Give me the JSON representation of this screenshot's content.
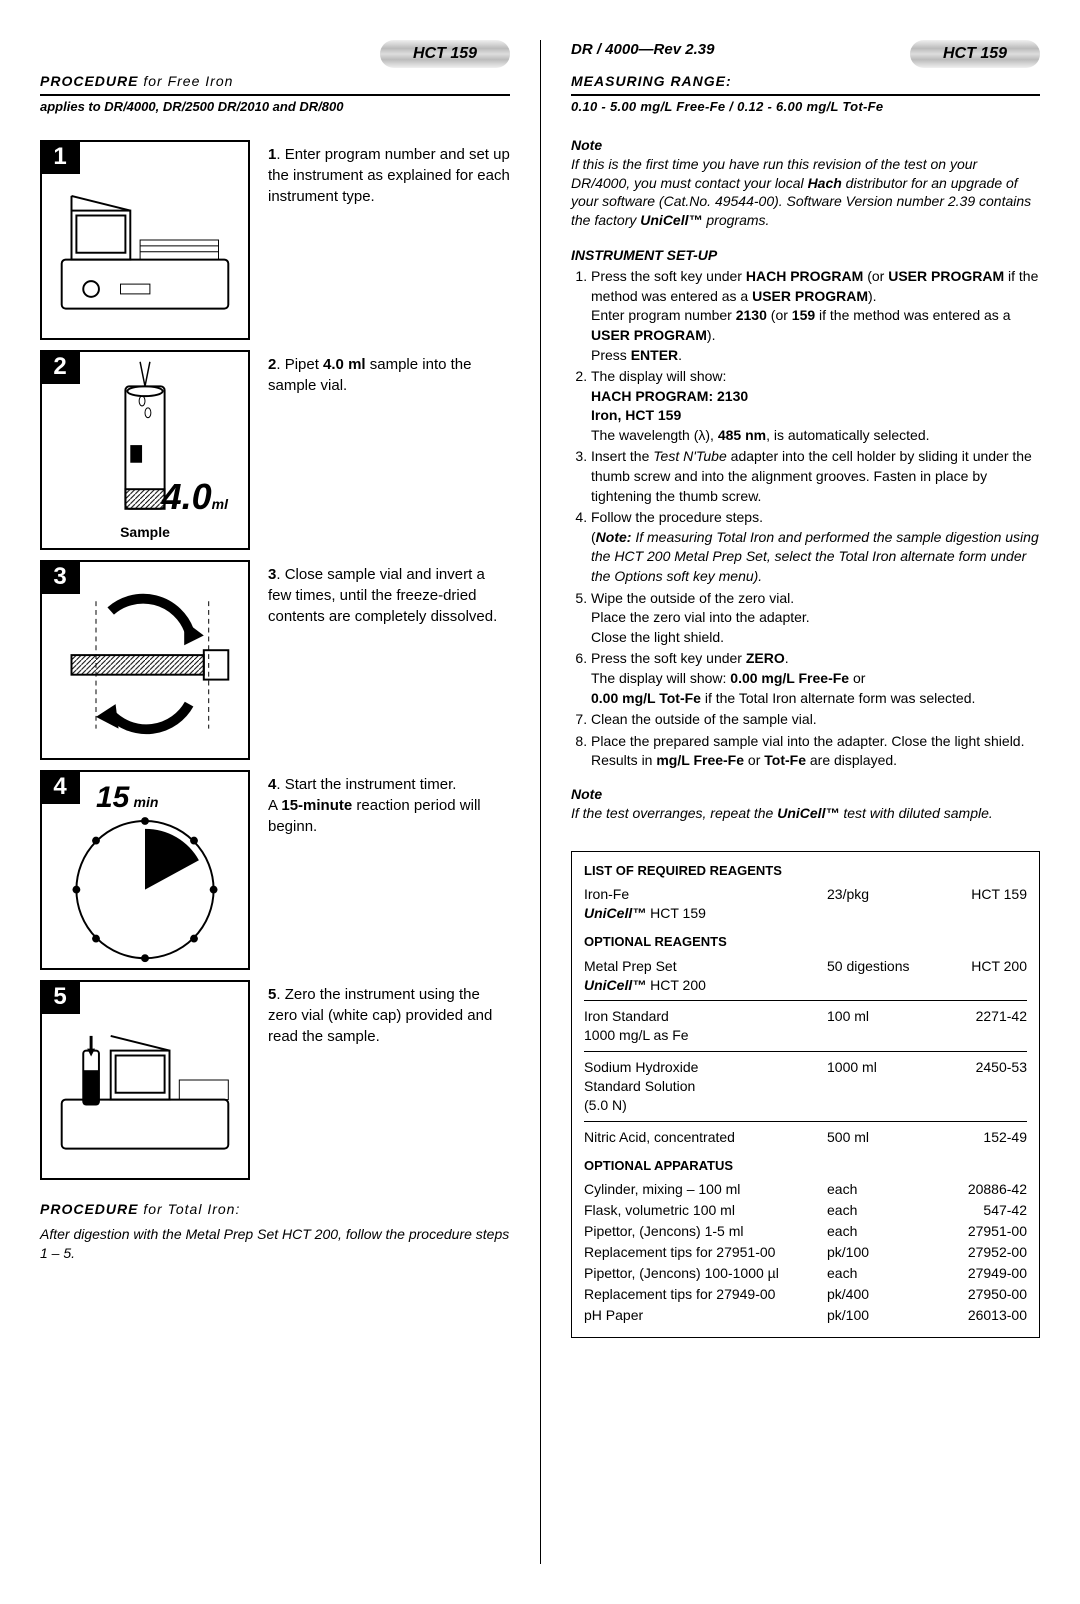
{
  "left": {
    "pill": "HCT 159",
    "proc_title": "PROCEDURE",
    "proc_for": " for Free Iron",
    "applies": "applies to DR/4000, DR/2500 DR/2010 and DR/800",
    "steps": [
      {
        "n": "1",
        "html": "Enter program number and set up the instrument as explained for each instrument type."
      },
      {
        "n": "2",
        "html": "Pipet <b>4.0 ml</b> sample into the sample vial."
      },
      {
        "n": "3",
        "html": "Close sample vial and invert a few times, until the freeze-dried contents are completely dissolved."
      },
      {
        "n": "4",
        "html": "Start the instrument timer.<br>A <b>15-minute</b> reaction period will beginn."
      },
      {
        "n": "5",
        "html": "Zero the instrument using the zero vial (white cap) provided and read the sample."
      }
    ],
    "box2": {
      "val": "4.0",
      "unit": "ml",
      "label": "Sample"
    },
    "box4": {
      "val": "15",
      "unit": "min"
    },
    "total_title": "PROCEDURE",
    "total_for": " for Total Iron:",
    "total_text": "After digestion with the Metal Prep Set HCT 200, follow the procedure steps 1 – 5."
  },
  "right": {
    "rev": "DR / 4000—Rev 2.39",
    "pill": "HCT 159",
    "range_title": "MEASURING RANGE:",
    "range_val": "0.10 - 5.00 mg/L Free-Fe / 0.12 - 6.00 mg/L Tot-Fe",
    "note1_h": "Note",
    "note1": "If this is the first time you have run this revision of the test on your DR/4000, you must contact your local <b>Hach</b> distributor for an upgrade of your software (Cat.No. 49544-00). Software Version number 2.39 contains the factory <b>UniCell™</b> programs.",
    "setup_h": "INSTRUMENT SET-UP",
    "setup": [
      "Press the soft key under <b>HACH PROGRAM</b> (or <b>USER PROGRAM</b> if the method was entered as a <b>USER PROGRAM</b>).<br>Enter program number <b>2130</b> (or <b>159</b> if the method was entered as a <b>USER PROGRAM</b>).<br>Press <b>ENTER</b>.",
      "The display will show:<br><b>HACH PROGRAM: 2130<br>Iron, HCT 159</b><br>The wavelength (λ), <b>485 nm</b>, is automatically selected.",
      "Insert the <i>Test N'Tube</i> adapter into the cell holder by sliding it under the thumb screw and into the alignment grooves. Fasten in place by tightening the thumb screw.",
      "Follow the procedure steps.<br>(<b><i>Note:</i></b> <i>If measuring Total Iron and performed the sample digestion using the HCT 200 Metal Prep Set, select the Total Iron alternate form under the Options soft key menu).</i>",
      "Wipe the outside of the zero vial.<br>Place the zero vial into the adapter.<br>Close the light shield.",
      "Press the soft key under <b>ZERO</b>.<br>The display will show: <b>0.00 mg/L Free-Fe</b> or<br><b>0.00 mg/L Tot-Fe</b> if the Total Iron alternate form was selected.",
      "Clean the outside of the sample vial.",
      "Place the prepared sample vial into the adapter. Close the light shield. Results in <b>mg/L Free-Fe</b> or <b>Tot-Fe</b> are displayed."
    ],
    "note2_h": "Note",
    "note2": "If the test overranges, repeat the <b>UniCell™</b> test with diluted sample.",
    "reagents": {
      "h1": "LIST OF REQUIRED REAGENTS",
      "req": [
        {
          "name": "Iron-Fe<br><b><i>UniCell™</i></b> HCT 159",
          "qty": "23/pkg",
          "cat": "HCT 159"
        }
      ],
      "h2": "OPTIONAL REAGENTS",
      "opt": [
        {
          "name": "Metal Prep Set<br><b><i>UniCell™</i></b> HCT 200",
          "qty": "50 digestions",
          "cat": "HCT 200"
        },
        {
          "name": "Iron Standard<br>1000 mg/L as Fe",
          "qty": "100 ml",
          "cat": "2271-42"
        },
        {
          "name": "Sodium Hydroxide<br>Standard Solution<br>(5.0 N)",
          "qty": "1000 ml",
          "cat": "2450-53"
        },
        {
          "name": "Nitric Acid, concentrated",
          "qty": "500 ml",
          "cat": "152-49"
        }
      ],
      "h3": "OPTIONAL APPARATUS",
      "app": [
        {
          "name": "Cylinder, mixing – 100 ml",
          "qty": "each",
          "cat": "20886-42"
        },
        {
          "name": "Flask, volumetric 100 ml",
          "qty": "each",
          "cat": "547-42"
        },
        {
          "name": "Pipettor, (Jencons) 1-5 ml",
          "qty": "each",
          "cat": "27951-00"
        },
        {
          "name": "Replacement tips for 27951-00",
          "qty": "pk/100",
          "cat": "27952-00"
        },
        {
          "name": "Pipettor, (Jencons) 100-1000 µl",
          "qty": "each",
          "cat": "27949-00"
        },
        {
          "name": "Replacement tips for 27949-00",
          "qty": "pk/400",
          "cat": "27950-00"
        },
        {
          "name": "pH Paper",
          "qty": "pk/100",
          "cat": "26013-00"
        }
      ]
    }
  }
}
